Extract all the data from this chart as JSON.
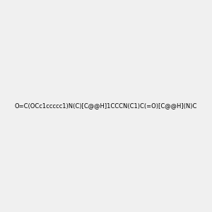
{
  "smiles": "O=C(OCc1ccccc1)N(C)[C@@H]1CCCN(C1)C(=O)[C@@H](N)C",
  "title": "",
  "background_color": "#f0f0f0",
  "figsize": [
    3.0,
    3.0
  ],
  "dpi": 100
}
